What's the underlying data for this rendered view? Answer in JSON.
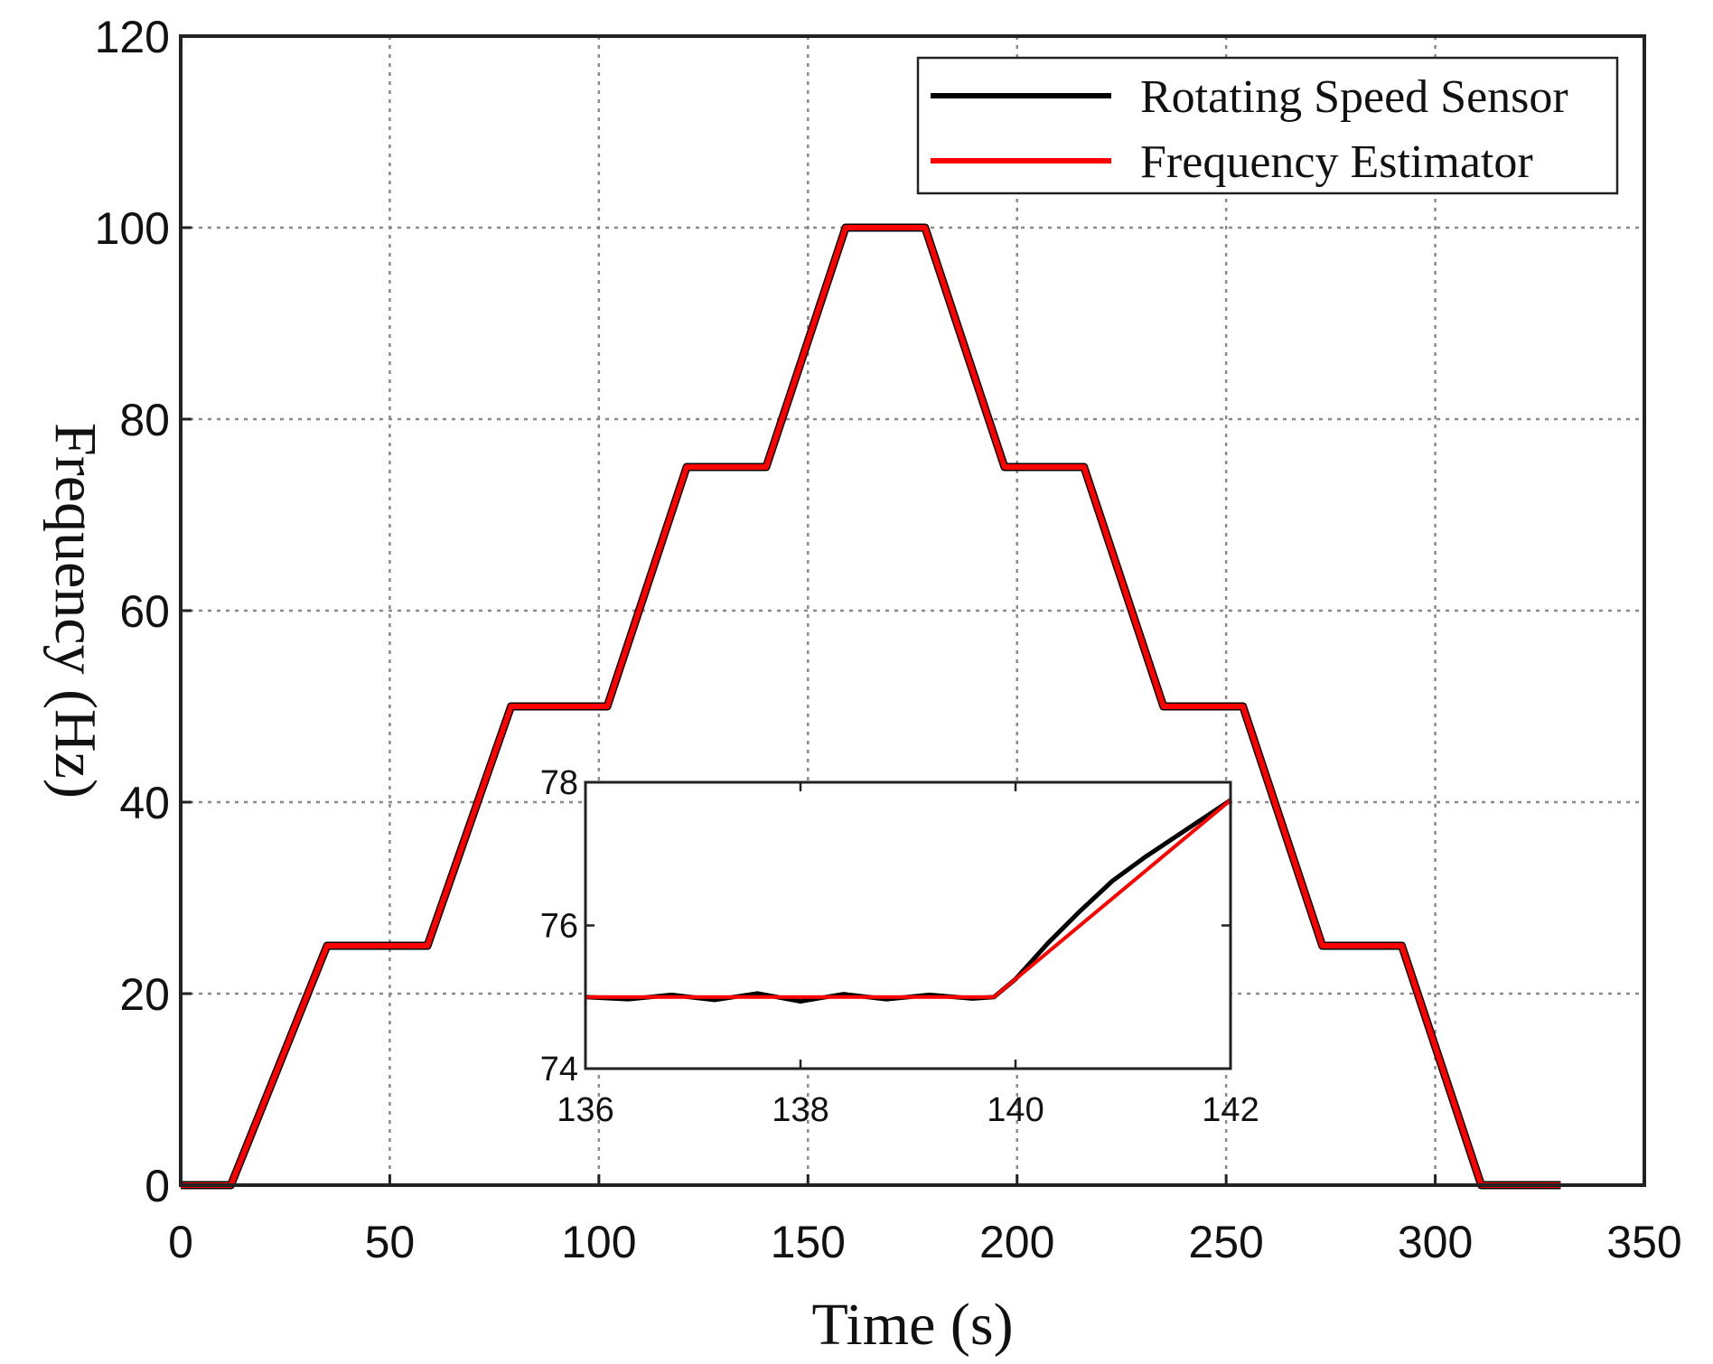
{
  "chart_data": [
    {
      "type": "line",
      "title": "",
      "xlabel": "Time (s)",
      "ylabel": "Frequency (Hz)",
      "xlim": [
        0,
        350
      ],
      "ylim": [
        0,
        120
      ],
      "xticks": [
        0,
        50,
        100,
        150,
        200,
        250,
        300,
        350
      ],
      "yticks": [
        0,
        20,
        40,
        60,
        80,
        100,
        120
      ],
      "grid": true,
      "legend_position": "top-right",
      "series": [
        {
          "name": "Rotating Speed Sensor",
          "color": "#000000",
          "x": [
            0,
            12,
            35,
            59,
            79,
            102,
            121,
            140,
            159,
            178,
            197,
            216,
            235,
            254,
            273,
            292,
            311,
            330
          ],
          "y": [
            0,
            0,
            25,
            25,
            50,
            50,
            75,
            75,
            100,
            100,
            75,
            75,
            50,
            50,
            25,
            25,
            0,
            0
          ]
        },
        {
          "name": "Frequency Estimator",
          "color": "#ff0000",
          "x": [
            0,
            12,
            35,
            59,
            79,
            102,
            121,
            140,
            159,
            178,
            197,
            216,
            235,
            254,
            273,
            292,
            311,
            330
          ],
          "y": [
            0,
            0,
            25,
            25,
            50,
            50,
            75,
            75,
            100,
            100,
            75,
            75,
            50,
            50,
            25,
            25,
            0,
            0
          ]
        }
      ]
    },
    {
      "type": "line",
      "role": "inset",
      "xlim": [
        136,
        142
      ],
      "ylim": [
        74,
        78
      ],
      "xticks": [
        136,
        138,
        140,
        142
      ],
      "yticks": [
        74,
        76,
        78
      ],
      "series": [
        {
          "name": "Rotating Speed Sensor",
          "color": "#000000",
          "x": [
            136,
            136.4,
            136.8,
            137.2,
            137.6,
            138.0,
            138.4,
            138.8,
            139.2,
            139.6,
            139.8,
            140.0,
            140.3,
            140.6,
            140.9,
            141.2,
            141.5,
            141.8,
            142.0
          ],
          "y": [
            75.0,
            74.97,
            75.03,
            74.96,
            75.05,
            74.94,
            75.04,
            74.97,
            75.03,
            74.98,
            75.0,
            75.25,
            75.75,
            76.2,
            76.62,
            76.95,
            77.25,
            77.55,
            77.75
          ]
        },
        {
          "name": "Frequency Estimator",
          "color": "#ff0000",
          "x": [
            136,
            139.8,
            142
          ],
          "y": [
            75.0,
            75.0,
            77.75
          ]
        }
      ]
    }
  ]
}
